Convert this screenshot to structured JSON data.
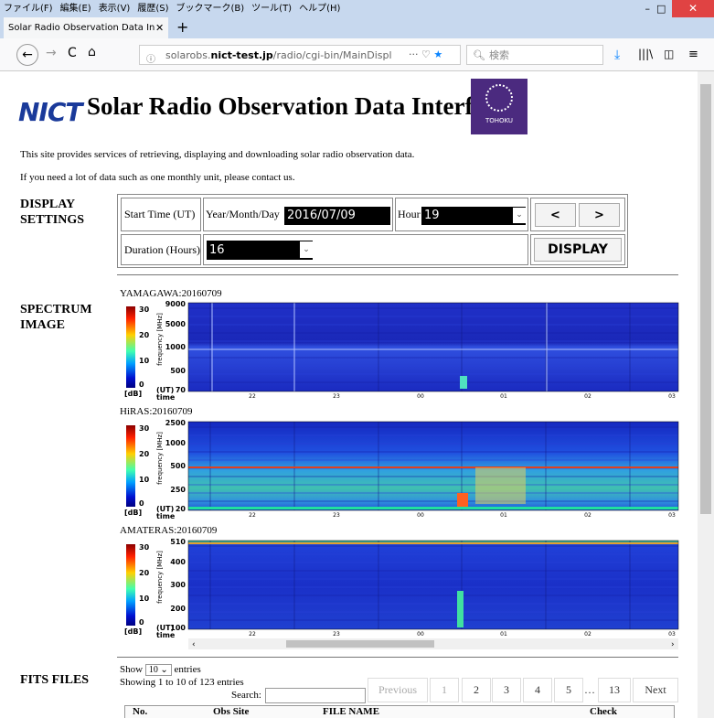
{
  "browser": {
    "menu": [
      "ファイル(F)",
      "編集(E)",
      "表示(V)",
      "履歴(S)",
      "ブックマーク(B)",
      "ツール(T)",
      "ヘルプ(H)"
    ],
    "tab_title": "Solar Radio Observation Data In",
    "url_prefix": "solarobs.",
    "url_domain": "nict-test.jp",
    "url_path": "/radio/cgi-bin/MainDispl",
    "search_placeholder": "検索"
  },
  "header": {
    "logo": "NICT",
    "title": "Solar Radio Observation Data Interface",
    "university": "TOHOKU"
  },
  "intro": [
    "This site provides services of retrieving, displaying and downloading solar radio observation data.",
    "If you need a lot of data such as one monthly unit, please contact us."
  ],
  "settings": {
    "label": "DISPLAY SETTINGS",
    "start_time": "Start Time (UT)",
    "date_label": "Year/Month/Day",
    "date": "2016/07/09",
    "hour_label": "Hour",
    "hour": "19",
    "prev": "<",
    "next": ">",
    "duration_label": "Duration (Hours)",
    "duration": "16",
    "display": "DISPLAY"
  },
  "spectrum": {
    "label": "SPECTRUM IMAGE",
    "panels": [
      {
        "label": "YAMAGAWA:20160709",
        "db_ticks": [
          "30",
          "20",
          "10",
          "0"
        ],
        "db_unit": "[dB]",
        "freq_label": "frequency [MHz]",
        "freq_ticks": [
          "9000",
          "5000",
          "1000",
          "500",
          "70"
        ],
        "ut": "(UT)",
        "time": "time",
        "time_ticks": [
          "22",
          "23",
          "00",
          "01",
          "02",
          "03"
        ]
      },
      {
        "label": "HiRAS:20160709",
        "db_ticks": [
          "30",
          "20",
          "10",
          "0"
        ],
        "db_unit": "[dB]",
        "freq_label": "frequency [MHz]",
        "freq_ticks": [
          "2500",
          "1000",
          "500",
          "250",
          "20"
        ],
        "ut": "(UT)",
        "time": "time",
        "time_ticks": [
          "22",
          "23",
          "00",
          "01",
          "02",
          "03"
        ]
      },
      {
        "label": "AMATERAS:20160709",
        "db_ticks": [
          "30",
          "20",
          "10",
          "0"
        ],
        "db_unit": "[dB]",
        "freq_label": "frequency [MHz]",
        "freq_ticks": [
          "510",
          "400",
          "300",
          "200",
          "100"
        ],
        "ut": "(UT)",
        "time": "time",
        "time_ticks": [
          "22",
          "23",
          "00",
          "01",
          "02",
          "03"
        ]
      }
    ]
  },
  "fits": {
    "label": "FITS FILES",
    "show": "Show",
    "page_length": "10",
    "entries": "entries",
    "info": "Showing 1 to 10 of 123 entries",
    "search": "Search:",
    "pagination": [
      "Previous",
      "1",
      "2",
      "3",
      "4",
      "5",
      "…",
      "13",
      "Next"
    ],
    "columns": [
      "No.",
      "Obs Site",
      "FILE NAME",
      "Check"
    ]
  }
}
